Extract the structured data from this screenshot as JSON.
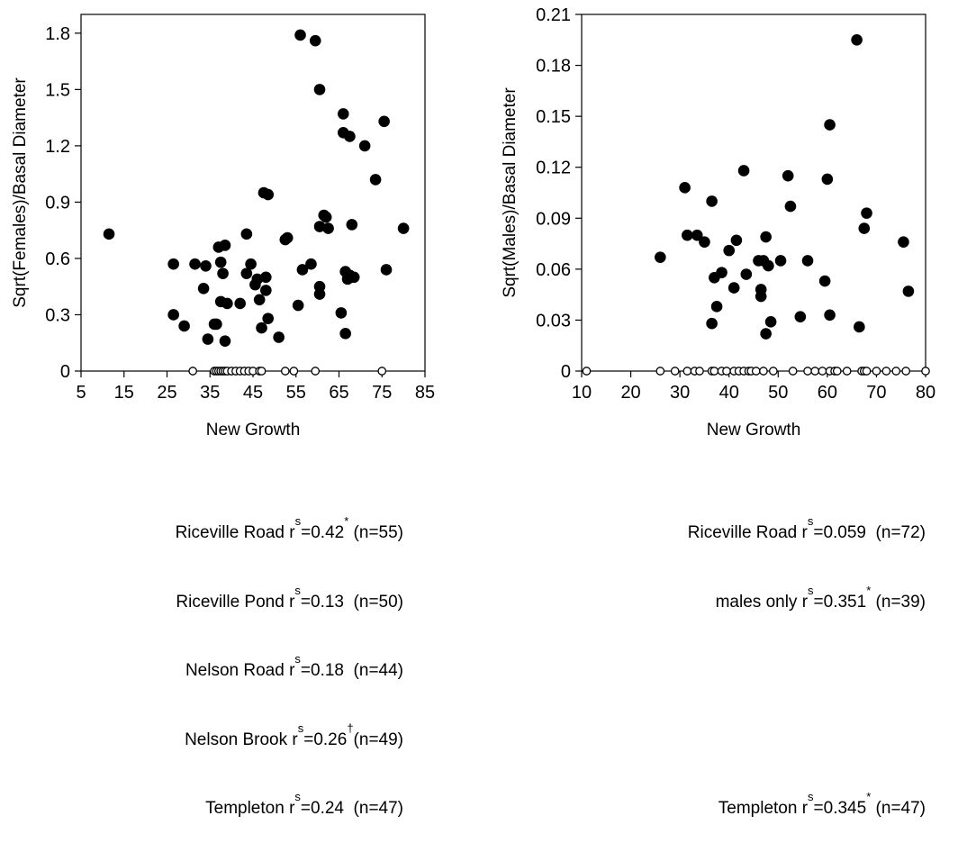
{
  "chart_data": [
    {
      "type": "scatter",
      "xlabel": "New Growth",
      "ylabel": "Sqrt(Females)/Basal Diameter",
      "xlim": [
        5,
        85
      ],
      "ylim": [
        0,
        1.9
      ],
      "xticks": [
        5,
        15,
        25,
        35,
        45,
        55,
        65,
        75,
        85
      ],
      "yticks": [
        0,
        0.3,
        0.6,
        0.9,
        1.2,
        1.5,
        1.8
      ],
      "ytick_labels": [
        "0",
        "0.3",
        "0.6",
        "0.9",
        "1.2",
        "1.5",
        "1.8"
      ],
      "grid": false,
      "series": [
        {
          "marker": "filled",
          "x": [
            11.5,
            26.5,
            26.5,
            29,
            31.5,
            33.5,
            34,
            34.5,
            36,
            36.5,
            37,
            37.5,
            37.5,
            38,
            38.5,
            38.5,
            39,
            42,
            43.5,
            43.5,
            44.5,
            45.5,
            46,
            46.5,
            47,
            47.5,
            48,
            48,
            48.5,
            48.5,
            51,
            52.5,
            53,
            55.5,
            56,
            56.5,
            58.5,
            59.5,
            60.5,
            60.5,
            60.5,
            60.5,
            61.5,
            62,
            62.5,
            65.5,
            66,
            66,
            66.5,
            66.5,
            67,
            67.5,
            67.5,
            68,
            68,
            68.5,
            71,
            73.5,
            75.5,
            76,
            80
          ],
          "y": [
            0.73,
            0.57,
            0.3,
            0.24,
            0.57,
            0.44,
            0.56,
            0.17,
            0.25,
            0.25,
            0.66,
            0.58,
            0.37,
            0.52,
            0.67,
            0.16,
            0.36,
            0.36,
            0.73,
            0.52,
            0.57,
            0.46,
            0.49,
            0.38,
            0.23,
            0.95,
            0.5,
            0.43,
            0.94,
            0.28,
            0.18,
            0.7,
            0.71,
            0.35,
            1.79,
            0.54,
            0.57,
            1.76,
            1.5,
            0.77,
            0.45,
            0.41,
            0.83,
            0.82,
            0.76,
            0.31,
            1.37,
            1.27,
            0.53,
            0.2,
            0.49,
            1.25,
            0.51,
            0.78,
            0.5,
            0.5,
            1.2,
            1.02,
            1.33,
            0.54,
            0.76
          ]
        },
        {
          "marker": "open",
          "x": [
            31,
            36,
            36.5,
            37,
            37.5,
            38,
            38.5,
            39,
            40,
            41,
            42,
            43,
            44,
            45,
            46.5,
            47,
            52.5,
            54.5,
            59.5,
            75
          ],
          "y": [
            0,
            0,
            0,
            0,
            0,
            0,
            0,
            0,
            0,
            0,
            0,
            0,
            0,
            0,
            0,
            0,
            0,
            0,
            0,
            0
          ]
        }
      ]
    },
    {
      "type": "scatter",
      "xlabel": "New Growth",
      "ylabel": "Sqrt(Males)/Basal Diameter",
      "xlim": [
        10,
        80
      ],
      "ylim": [
        0,
        0.21
      ],
      "xticks": [
        10,
        20,
        30,
        40,
        50,
        60,
        70,
        80
      ],
      "yticks": [
        0,
        0.03,
        0.06,
        0.09,
        0.12,
        0.15,
        0.18,
        0.21
      ],
      "ytick_labels": [
        "0",
        "0.03",
        "0.06",
        "0.09",
        "0.12",
        "0.15",
        "0.18",
        "0.21"
      ],
      "grid": false,
      "series": [
        {
          "marker": "filled",
          "x": [
            26,
            31,
            31.5,
            33.5,
            35,
            36.5,
            36.5,
            37,
            37.5,
            38.5,
            40,
            41,
            41.5,
            43,
            43.5,
            46,
            46.5,
            46.5,
            47,
            47.5,
            47.5,
            48,
            48.5,
            50.5,
            52,
            52.5,
            54.5,
            56,
            59.5,
            60,
            60.5,
            60.5,
            66,
            66.5,
            67.5,
            68,
            75.5,
            76.5
          ],
          "y": [
            0.067,
            0.108,
            0.08,
            0.08,
            0.076,
            0.1,
            0.028,
            0.055,
            0.038,
            0.058,
            0.071,
            0.049,
            0.077,
            0.118,
            0.057,
            0.065,
            0.048,
            0.044,
            0.065,
            0.079,
            0.022,
            0.062,
            0.029,
            0.065,
            0.115,
            0.097,
            0.032,
            0.065,
            0.053,
            0.113,
            0.145,
            0.033,
            0.195,
            0.026,
            0.084,
            0.093,
            0.076,
            0.047
          ]
        },
        {
          "marker": "open",
          "x": [
            11,
            26,
            29,
            31.5,
            33,
            34,
            36.5,
            37,
            38.5,
            39.5,
            41,
            42,
            43,
            44,
            44.5,
            45.5,
            47,
            49,
            53,
            56,
            57.5,
            59,
            60.5,
            61.5,
            62,
            64,
            67,
            67.5,
            68,
            70,
            72,
            74,
            76,
            80
          ],
          "y": [
            0,
            0,
            0,
            0,
            0,
            0,
            0,
            0,
            0,
            0,
            0,
            0,
            0,
            0,
            0,
            0,
            0,
            0,
            0,
            0,
            0,
            0,
            0,
            0,
            0,
            0,
            0,
            0,
            0,
            0,
            0,
            0,
            0,
            0
          ]
        }
      ]
    }
  ],
  "captions": {
    "left": [
      {
        "site": "Riceville Road",
        "r": "r",
        "s": "s",
        "val": "=0.42",
        "mark": "*",
        "n": " (n=55)"
      },
      {
        "site": "Riceville Pond",
        "r": "r",
        "s": "s",
        "val": "=0.13 ",
        "mark": "",
        "n": " (n=50)"
      },
      {
        "site": "Nelson Road",
        "r": "r",
        "s": "s",
        "val": "=0.18 ",
        "mark": "",
        "n": " (n=44)"
      },
      {
        "site": "Nelson Brook",
        "r": "r",
        "s": "s",
        "val": "=0.26",
        "mark": "†",
        "n": "(n=49)"
      },
      {
        "site": "Templeton",
        "r": "r",
        "s": "s",
        "val": "=0.24 ",
        "mark": "",
        "n": " (n=47)"
      }
    ],
    "right": [
      {
        "site": "Riceville Road",
        "r": "r",
        "s": "s",
        "val": "=0.059 ",
        "mark": "",
        "n": " (n=72)"
      },
      {
        "site": "males only",
        "r": "r",
        "s": "s",
        "val": "=0.351",
        "mark": "*",
        "n": " (n=39)"
      },
      {
        "site": "Templeton",
        "r": "r",
        "s": "s",
        "val": "=0.345",
        "mark": "*",
        "n": " (n=47)"
      }
    ]
  }
}
